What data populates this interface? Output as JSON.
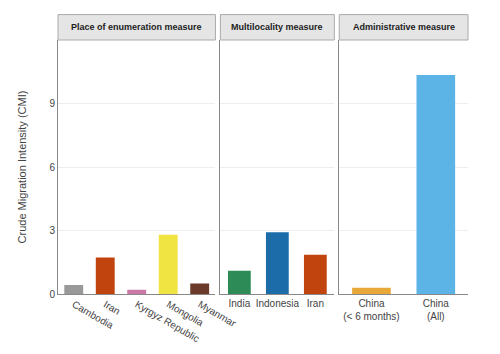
{
  "chart_data": [
    {
      "type": "bar",
      "title": "Place of enumeration measure",
      "ylabel": "Crude Migration Intensity (CMI)",
      "categories": [
        "Cambodia",
        "Iran",
        "Kyrgyz Republic",
        "Mongolia",
        "Myanmar"
      ],
      "values": [
        0.42,
        1.72,
        0.2,
        2.8,
        0.5
      ],
      "colors": [
        "#999999",
        "#C1440E",
        "#CC79A7",
        "#F0E442",
        "#6B3A2A"
      ],
      "ylim": [
        0,
        12
      ],
      "yticks": [
        0,
        3,
        6,
        9
      ],
      "grid": true
    },
    {
      "type": "bar",
      "title": "Multilocality measure",
      "categories": [
        "India",
        "Indonesia",
        "Iran"
      ],
      "values": [
        1.1,
        2.92,
        1.85
      ],
      "colors": [
        "#2D8B57",
        "#1B6CA8",
        "#C1440E"
      ],
      "ylim": [
        0,
        12
      ],
      "yticks": [
        0,
        3,
        6,
        9
      ],
      "grid": true,
      "tick_labels": "x"
    },
    {
      "type": "bar",
      "title": "Administrative measure",
      "categories": [
        "China\n(< 6 months)",
        "China\n(All)"
      ],
      "values": [
        0.3,
        10.35
      ],
      "colors": [
        "#E8A838",
        "#5BB4E5"
      ],
      "ylim": [
        0,
        12
      ],
      "yticks": [
        0,
        3,
        6,
        9
      ],
      "grid": true,
      "tick_labels": "x"
    }
  ]
}
